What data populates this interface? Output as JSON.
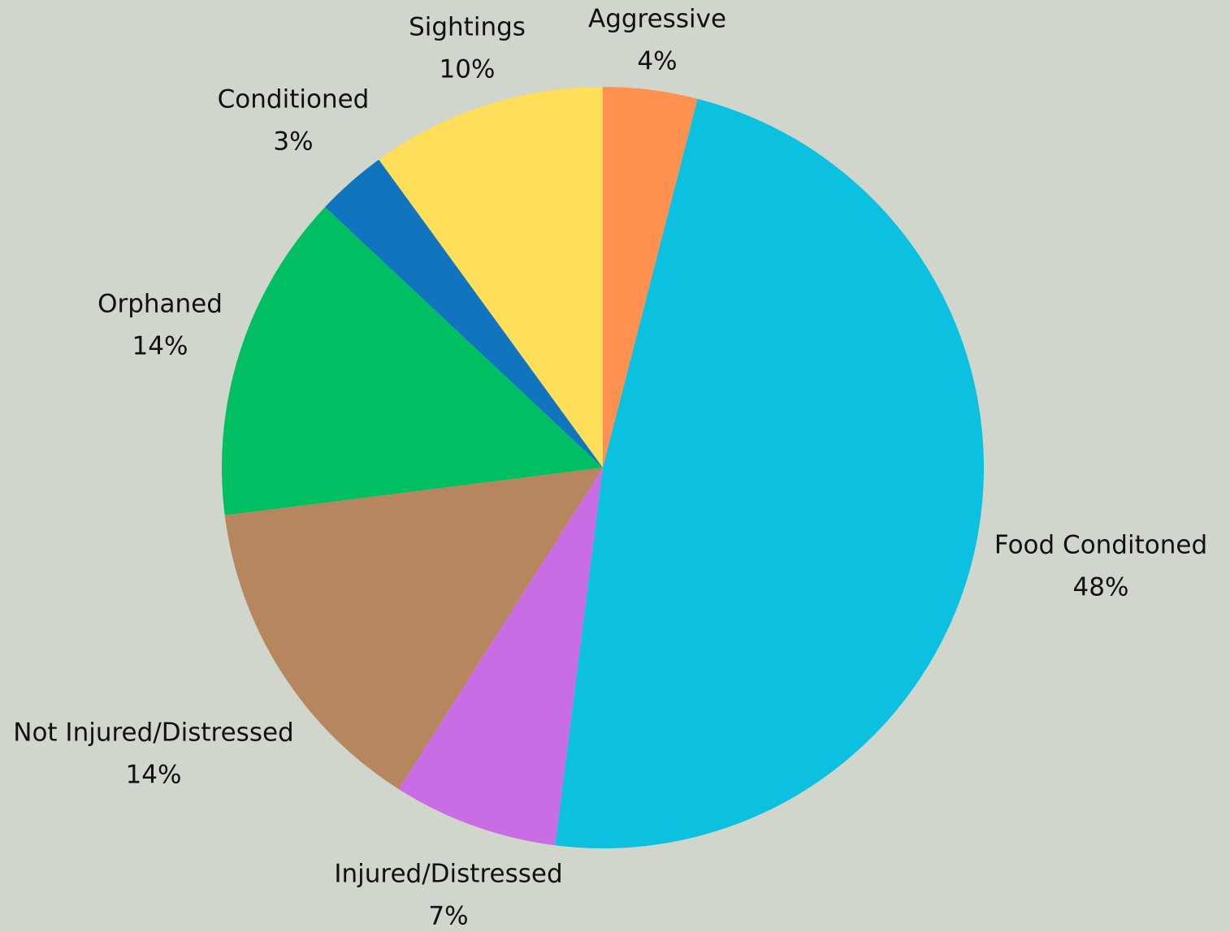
{
  "chart_data": {
    "type": "pie",
    "title": "",
    "legend": "none",
    "start_angle_deg": 0,
    "direction": "clockwise",
    "slices": [
      {
        "name": "Aggressive",
        "value": 4,
        "label": "4%",
        "color": "#ff9150"
      },
      {
        "name": "Food Conditoned",
        "value": 48,
        "label": "48%",
        "color": "#0cc1e0"
      },
      {
        "name": "Injured/Distressed",
        "value": 7,
        "label": "7%",
        "color": "#c96de4"
      },
      {
        "name": "Not Injured/Distressed",
        "value": 14,
        "label": "14%",
        "color": "#b6865e"
      },
      {
        "name": "Orphaned",
        "value": 14,
        "label": "14%",
        "color": "#00bf62"
      },
      {
        "name": "Conditioned",
        "value": 3,
        "label": "3%",
        "color": "#1074bf"
      },
      {
        "name": "Sightings",
        "value": 10,
        "label": "10%",
        "color": "#ffde59"
      }
    ]
  }
}
